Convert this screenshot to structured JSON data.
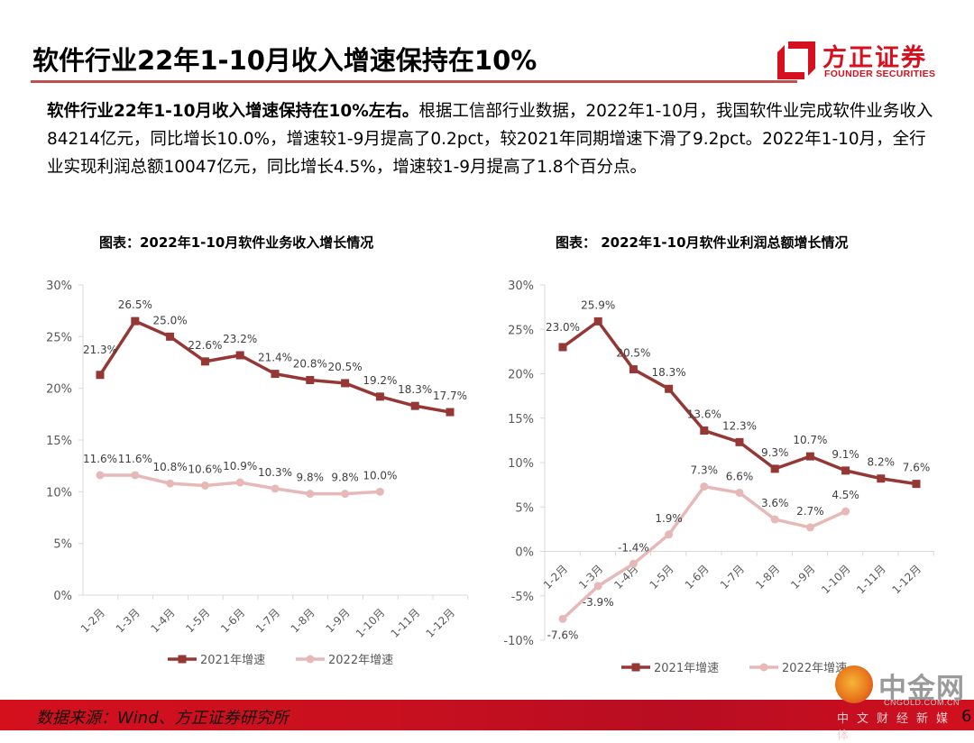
{
  "header": {
    "title": "软件行业22年1-10月收入增速保持在10%",
    "logo_cn": "方正证券",
    "logo_en": "FOUNDER SECURITIES"
  },
  "summary": {
    "bold_lead": "软件行业22年1-10月收入增速保持在10%左右。",
    "text": "根据工信部行业数据，2022年1-10月，我国软件业完成软件业务收入84214亿元，同比增长10.0%，增速较1-9月提高了0.2pct，较2021年同期增速下滑了9.2pct。2022年1-10月，全行业实现利润总额10047亿元，同比增长4.5%，增速较1-9月提高了1.8个百分点。"
  },
  "footer": {
    "source": "数据来源：Wind、方正证券研究所",
    "page_number": "6",
    "watermark_cn": "中金网",
    "watermark_url": "CNGOLD.COM.CN",
    "watermark_sub": "中文财经新媒体"
  },
  "colors": {
    "series_2021": "#953735",
    "series_2022": "#e6b9b8",
    "accent_red": "#d7101f",
    "title_rule": "#c0504d"
  },
  "chart_data": [
    {
      "type": "line",
      "title": "图表：2022年1-10月软件业务收入增长情况",
      "categories": [
        "1-2月",
        "1-3月",
        "1-4月",
        "1-5月",
        "1-6月",
        "1-7月",
        "1-8月",
        "1-9月",
        "1-10月",
        "1-11月",
        "1-12月"
      ],
      "series": [
        {
          "name": "2021年增速",
          "marker": "square",
          "values": [
            21.3,
            26.5,
            25.0,
            22.6,
            23.2,
            21.4,
            20.8,
            20.5,
            19.2,
            18.3,
            17.7
          ],
          "labels": [
            "21.3%",
            "26.5%",
            "25.0%",
            "22.6%",
            "23.2%",
            "21.4%",
            "20.8%",
            "20.5%",
            "19.2%",
            "18.3%",
            "17.7%"
          ]
        },
        {
          "name": "2022年增速",
          "marker": "circle",
          "values": [
            11.6,
            11.6,
            10.8,
            10.6,
            10.9,
            10.3,
            9.8,
            9.8,
            10.0,
            null,
            null
          ],
          "labels": [
            "11.6%",
            "11.6%",
            "10.8%",
            "10.6%",
            "10.9%",
            "10.3%",
            "9.8%",
            "9.8%",
            "10.0%",
            null,
            null
          ]
        }
      ],
      "ylim": [
        0,
        30
      ],
      "yticks": [
        0,
        5,
        10,
        15,
        20,
        25,
        30
      ],
      "ytick_labels": [
        "0%",
        "5%",
        "10%",
        "15%",
        "20%",
        "25%",
        "30%"
      ],
      "xlabel": "",
      "ylabel": "",
      "grid": false,
      "legend": "bottom"
    },
    {
      "type": "line",
      "title": "图表： 2022年1-10月软件业利润总额增长情况",
      "categories": [
        "1-2月",
        "1-3月",
        "1-4月",
        "1-5月",
        "1-6月",
        "1-7月",
        "1-8月",
        "1-9月",
        "1-10月",
        "1-11月",
        "1-12月"
      ],
      "series": [
        {
          "name": "2021年增速",
          "marker": "square",
          "values": [
            23.0,
            25.9,
            20.5,
            18.3,
            13.6,
            12.3,
            9.3,
            10.7,
            9.1,
            8.2,
            7.6
          ],
          "labels": [
            "23.0%",
            "25.9%",
            "20.5%",
            "18.3%",
            "13.6%",
            "12.3%",
            "9.3%",
            "10.7%",
            "9.1%",
            "8.2%",
            "7.6%"
          ]
        },
        {
          "name": "2022年增速",
          "marker": "circle",
          "values": [
            -7.6,
            -3.9,
            -1.4,
            1.9,
            7.3,
            6.6,
            3.6,
            2.7,
            4.5,
            null,
            null
          ],
          "labels": [
            "-7.6%",
            "-3.9%",
            "-1.4%",
            "1.9%",
            "7.3%",
            "6.6%",
            "3.6%",
            "2.7%",
            "4.5%",
            null,
            null
          ]
        }
      ],
      "ylim": [
        -10,
        30
      ],
      "yticks": [
        -10,
        -5,
        0,
        5,
        10,
        15,
        20,
        25,
        30
      ],
      "ytick_labels": [
        "-10%",
        "-5%",
        "0%",
        "5%",
        "10%",
        "15%",
        "20%",
        "25%",
        "30%"
      ],
      "xlabel": "",
      "ylabel": "",
      "grid": false,
      "legend": "bottom"
    }
  ]
}
